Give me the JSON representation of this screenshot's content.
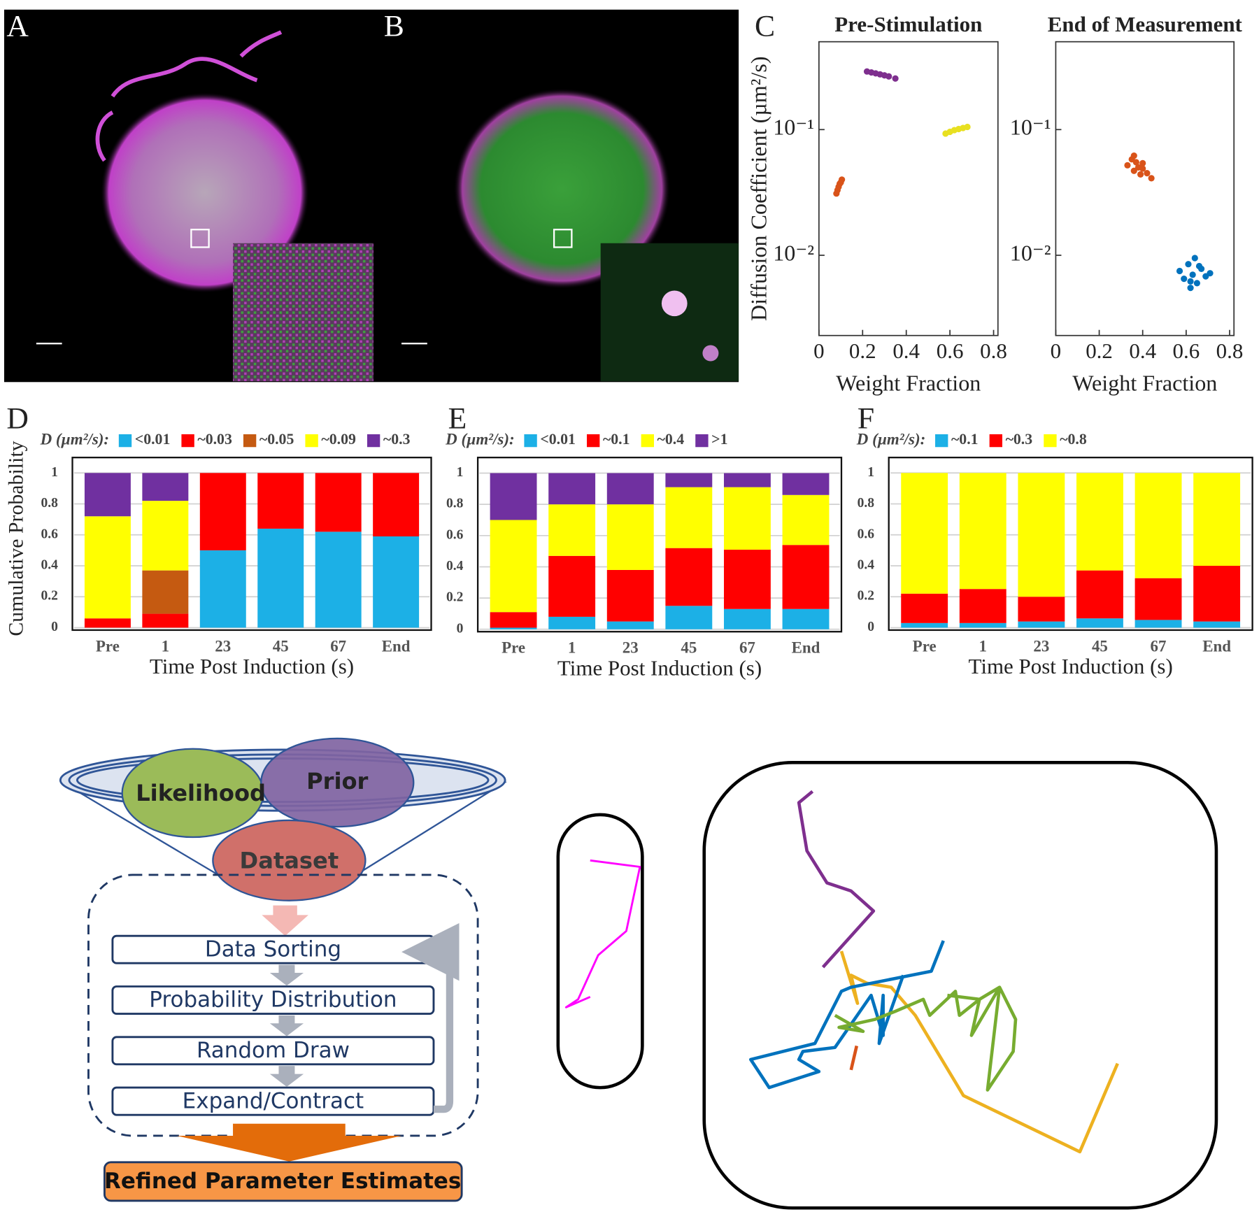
{
  "panel_labels": [
    "A",
    "B",
    "C",
    "D",
    "E",
    "F"
  ],
  "chart_data": [
    {
      "type": "scatter",
      "title": "Pre-Stimulation",
      "y_label": "Diffusion Coefficient (µm²/s)",
      "x_label": "Weight Fraction",
      "xlim": [
        0,
        0.82
      ],
      "xticks": [
        0,
        0.2,
        0.4,
        0.6,
        0.8
      ],
      "ylim": [
        0.0023,
        0.5
      ],
      "log_y": true,
      "yticks": [
        {
          "value": 0.1,
          "label": "10⁻¹"
        },
        {
          "value": 0.01,
          "label": "10⁻²"
        }
      ],
      "series": [
        {
          "color": "#7e2f8e",
          "x": [
            0.22,
            0.24,
            0.26,
            0.28,
            0.3,
            0.32,
            0.35
          ],
          "y": [
            0.29,
            0.285,
            0.28,
            0.275,
            0.27,
            0.265,
            0.255
          ]
        },
        {
          "color": "#e8e020",
          "x": [
            0.58,
            0.6,
            0.62,
            0.64,
            0.66,
            0.68
          ],
          "y": [
            0.093,
            0.096,
            0.099,
            0.101,
            0.103,
            0.105
          ]
        },
        {
          "color": "#d95319",
          "x": [
            0.08,
            0.085,
            0.09,
            0.095,
            0.1,
            0.105
          ],
          "y": [
            0.031,
            0.033,
            0.035,
            0.037,
            0.038,
            0.04
          ]
        }
      ]
    },
    {
      "type": "scatter",
      "title": "End of Measurement",
      "x_label": "Weight Fraction",
      "xlim": [
        0,
        0.82
      ],
      "xticks": [
        0,
        0.2,
        0.4,
        0.6,
        0.8
      ],
      "ylim": [
        0.0023,
        0.5
      ],
      "log_y": true,
      "yticks": [
        {
          "value": 0.1,
          "label": "10⁻¹"
        },
        {
          "value": 0.01,
          "label": "10⁻²"
        }
      ],
      "series": [
        {
          "color": "#d95319",
          "x": [
            0.33,
            0.35,
            0.36,
            0.37,
            0.38,
            0.39,
            0.4,
            0.42,
            0.44,
            0.36,
            0.4
          ],
          "y": [
            0.052,
            0.058,
            0.047,
            0.055,
            0.05,
            0.044,
            0.049,
            0.045,
            0.041,
            0.062,
            0.054
          ]
        },
        {
          "color": "#0072bd",
          "x": [
            0.57,
            0.59,
            0.61,
            0.62,
            0.63,
            0.64,
            0.65,
            0.67,
            0.69,
            0.71,
            0.62,
            0.66
          ],
          "y": [
            0.0075,
            0.0065,
            0.0085,
            0.0055,
            0.007,
            0.0095,
            0.006,
            0.0078,
            0.0068,
            0.0072,
            0.0062,
            0.0082
          ]
        }
      ]
    },
    {
      "type": "stacked_bar",
      "legend_title": "D (µm²/s):",
      "y_label": "Cumulative Probability",
      "x_label": "Time Post Induction (s)",
      "categories": [
        "Pre",
        "1",
        "23",
        "45",
        "67",
        "End"
      ],
      "ylim": [
        0,
        1.1
      ],
      "yticks": [
        0,
        0.2,
        0.4,
        0.6,
        0.8,
        1
      ],
      "grid": true,
      "series": [
        {
          "name": "<0.01",
          "color": "#1cb0e6",
          "values": [
            0,
            0,
            0.5,
            0.64,
            0.62,
            0.59
          ]
        },
        {
          "name": "~0.03",
          "color": "#ff0000",
          "values": [
            0.06,
            0.09,
            0.5,
            0.36,
            0.38,
            0.41
          ]
        },
        {
          "name": "~0.05",
          "color": "#c55a11",
          "values": [
            0,
            0.28,
            0,
            0,
            0,
            0
          ]
        },
        {
          "name": "~0.09",
          "color": "#ffff00",
          "values": [
            0.66,
            0.45,
            0,
            0,
            0,
            0
          ]
        },
        {
          "name": "~0.3",
          "color": "#7030a0",
          "values": [
            0.28,
            0.18,
            0,
            0,
            0,
            0
          ]
        }
      ]
    },
    {
      "type": "stacked_bar",
      "legend_title": "D (µm²/s):",
      "x_label": "Time Post Induction (s)",
      "categories": [
        "Pre",
        "1",
        "23",
        "45",
        "67",
        "End"
      ],
      "ylim": [
        0,
        1.1
      ],
      "yticks": [
        0,
        0.2,
        0.4,
        0.6,
        0.8,
        1
      ],
      "grid": true,
      "series": [
        {
          "name": "<0.01",
          "color": "#1cb0e6",
          "values": [
            0.01,
            0.08,
            0.05,
            0.15,
            0.13,
            0.13
          ]
        },
        {
          "name": "~0.1",
          "color": "#ff0000",
          "values": [
            0.1,
            0.39,
            0.33,
            0.37,
            0.38,
            0.41
          ]
        },
        {
          "name": "~0.4",
          "color": "#ffff00",
          "values": [
            0.59,
            0.33,
            0.42,
            0.39,
            0.4,
            0.32
          ]
        },
        {
          "name": ">1",
          "color": "#7030a0",
          "values": [
            0.3,
            0.2,
            0.2,
            0.09,
            0.09,
            0.14
          ]
        }
      ]
    },
    {
      "type": "stacked_bar",
      "legend_title": "D (µm²/s):",
      "x_label": "Time Post Induction (s)",
      "categories": [
        "Pre",
        "1",
        "23",
        "45",
        "67",
        "End"
      ],
      "ylim": [
        0,
        1.1
      ],
      "yticks": [
        0,
        0.2,
        0.4,
        0.6,
        0.8,
        1
      ],
      "grid": true,
      "series": [
        {
          "name": "~0.1",
          "color": "#1cb0e6",
          "values": [
            0.03,
            0.03,
            0.04,
            0.06,
            0.05,
            0.04
          ]
        },
        {
          "name": "~0.3",
          "color": "#ff0000",
          "values": [
            0.19,
            0.22,
            0.16,
            0.31,
            0.27,
            0.36
          ]
        },
        {
          "name": "~0.8",
          "color": "#ffff00",
          "values": [
            0.78,
            0.75,
            0.8,
            0.63,
            0.68,
            0.6
          ]
        }
      ]
    }
  ],
  "diagram": {
    "ellipses": [
      "Likelihood",
      "Prior",
      "Dataset"
    ],
    "steps": [
      "Data Sorting",
      "Probability Distribution",
      "Random Draw",
      "Expand/Contract"
    ],
    "output": "Refined Parameter Estimates"
  }
}
